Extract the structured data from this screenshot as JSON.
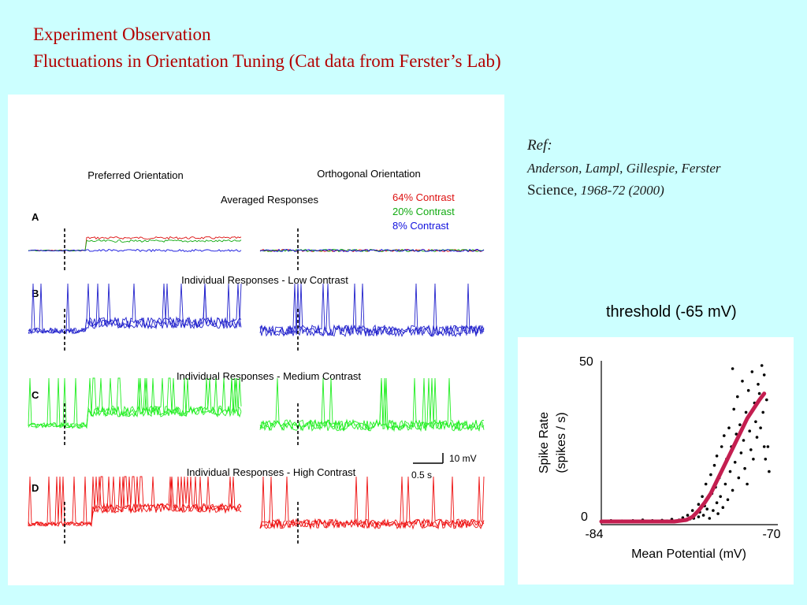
{
  "slide": {
    "title_line1": "Experiment Observation",
    "title_line2": "Fluctuations in Orientation Tuning (Cat data from Ferster’s Lab)"
  },
  "reference": {
    "label": "Ref:",
    "authors": "Anderson, Lampl, Gillespie, Ferster",
    "journal": "Science",
    "citation_rest": ", 1968-72 (2000)"
  },
  "threshold_note": "threshold (-65 mV)",
  "figure": {
    "col_preferred": "Preferred Orientation",
    "col_orthogonal": "Orthogonal Orientation",
    "legend": [
      {
        "label": "64% Contrast",
        "color": "#dd1111"
      },
      {
        "label": "20% Contrast",
        "color": "#11aa11"
      },
      {
        "label": "8%   Contrast",
        "color": "#1111dd"
      }
    ],
    "rows": [
      {
        "letter": "A",
        "heading": "Averaged Responses"
      },
      {
        "letter": "B",
        "heading": "Individual Responses - Low Contrast",
        "color": "#2222cc"
      },
      {
        "letter": "C",
        "heading": "Individual Responses - Medium Contrast",
        "color": "#22ee22"
      },
      {
        "letter": "D",
        "heading": "Individual Responses - High Contrast",
        "color": "#ee1111"
      }
    ],
    "scale_bar": {
      "voltage": "10 mV",
      "time": "0.5 s"
    }
  },
  "chart_data": {
    "type": "scatter",
    "xlabel": "Mean Potential (mV)",
    "ylabel_line1": "Spike Rate",
    "ylabel_line2": "(spikes / s)",
    "xlim": [
      -84,
      -70
    ],
    "ylim": [
      0,
      50
    ],
    "x_tick_labels": [
      "-84",
      "-70"
    ],
    "y_tick_labels": [
      "50",
      "0"
    ],
    "points_color": "#000000",
    "curve_color": "#c41e50",
    "points": [
      [
        -83.6,
        0
      ],
      [
        -83.2,
        0.3
      ],
      [
        -82.8,
        0
      ],
      [
        -82.3,
        0.2
      ],
      [
        -81.9,
        0
      ],
      [
        -81.4,
        0.3
      ],
      [
        -81.0,
        0
      ],
      [
        -80.6,
        0.5
      ],
      [
        -80.2,
        0
      ],
      [
        -79.8,
        0.3
      ],
      [
        -79.4,
        0
      ],
      [
        -79.0,
        0.4
      ],
      [
        -78.6,
        0.2
      ],
      [
        -78.2,
        0.7
      ],
      [
        -77.9,
        0
      ],
      [
        -77.6,
        0.5
      ],
      [
        -77.3,
        1.2
      ],
      [
        -77.1,
        0.3
      ],
      [
        -76.9,
        2.0
      ],
      [
        -76.7,
        0.8
      ],
      [
        -76.5,
        3.5
      ],
      [
        -76.4,
        1.0
      ],
      [
        -76.2,
        2.5
      ],
      [
        -76.0,
        5.5
      ],
      [
        -76.0,
        1.5
      ],
      [
        -75.9,
        3.0
      ],
      [
        -75.7,
        8.0
      ],
      [
        -75.6,
        2.0
      ],
      [
        -75.5,
        5.0
      ],
      [
        -75.4,
        12.0
      ],
      [
        -75.3,
        4.0
      ],
      [
        -75.2,
        7.5
      ],
      [
        -75.1,
        1.0
      ],
      [
        -75.0,
        15.0
      ],
      [
        -74.9,
        9.0
      ],
      [
        -74.8,
        3.5
      ],
      [
        -74.7,
        18.0
      ],
      [
        -74.6,
        11.0
      ],
      [
        -74.5,
        6.0
      ],
      [
        -74.5,
        21.0
      ],
      [
        -74.4,
        2.5
      ],
      [
        -74.3,
        14.0
      ],
      [
        -74.2,
        8.0
      ],
      [
        -74.1,
        24.0
      ],
      [
        -74.0,
        17.0
      ],
      [
        -74.0,
        4.5
      ],
      [
        -73.9,
        27.5
      ],
      [
        -73.8,
        12.0
      ],
      [
        -73.7,
        20.0
      ],
      [
        -73.6,
        7.0
      ],
      [
        -73.5,
        30.0
      ],
      [
        -73.4,
        16.0
      ],
      [
        -73.3,
        24.0
      ],
      [
        -73.2,
        49.0
      ],
      [
        -73.2,
        10.0
      ],
      [
        -73.1,
        36.0
      ],
      [
        -73.0,
        19.0
      ],
      [
        -72.9,
        28.0
      ],
      [
        -72.8,
        40.0
      ],
      [
        -72.7,
        14.0
      ],
      [
        -72.6,
        31.0
      ],
      [
        -72.5,
        22.0
      ],
      [
        -72.4,
        45.0
      ],
      [
        -72.3,
        26.0
      ],
      [
        -72.2,
        17.0
      ],
      [
        -72.1,
        35.0
      ],
      [
        -72.0,
        12.0
      ],
      [
        -71.9,
        42.0
      ],
      [
        -71.8,
        29.0
      ],
      [
        -71.7,
        23.0
      ],
      [
        -71.6,
        48.0
      ],
      [
        -71.5,
        20.0
      ],
      [
        -71.4,
        38.0
      ],
      [
        -71.3,
        32.0
      ],
      [
        -71.2,
        27.0
      ],
      [
        -71.1,
        44.0
      ],
      [
        -71.0,
        41.0
      ],
      [
        -70.9,
        30.0
      ],
      [
        -70.8,
        50.0
      ],
      [
        -70.7,
        35.0
      ],
      [
        -70.6,
        47.0
      ],
      [
        -70.6,
        24.0
      ],
      [
        -70.5,
        20.0
      ],
      [
        -70.4,
        39.0
      ],
      [
        -70.3,
        24.0
      ],
      [
        -70.2,
        16.0
      ]
    ],
    "curve": [
      [
        -84,
        0
      ],
      [
        -82,
        0
      ],
      [
        -80,
        0
      ],
      [
        -78,
        0
      ],
      [
        -77,
        0.5
      ],
      [
        -76.5,
        1.5
      ],
      [
        -76,
        3.5
      ],
      [
        -75.5,
        6
      ],
      [
        -75,
        9
      ],
      [
        -74.5,
        13
      ],
      [
        -74,
        17
      ],
      [
        -73.5,
        21
      ],
      [
        -73,
        25
      ],
      [
        -72.5,
        29
      ],
      [
        -72,
        33
      ],
      [
        -71.5,
        36
      ],
      [
        -71,
        39
      ],
      [
        -70.6,
        41
      ]
    ]
  }
}
